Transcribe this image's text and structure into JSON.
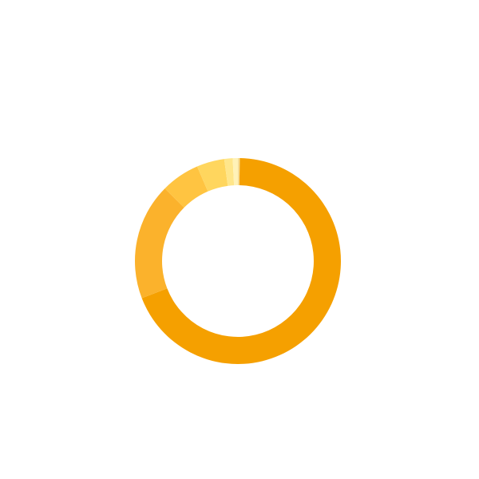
{
  "chart_data": {
    "type": "pie",
    "variant": "donut",
    "title": "",
    "legend": "none",
    "direction": "clockwise",
    "start_angle_deg": 0,
    "slices": [
      {
        "value": 0.3,
        "color": "#F5DD9A"
      },
      {
        "value": 68.0,
        "color": "#F5A000"
      },
      {
        "value": 18.1,
        "color": "#FBB22C"
      },
      {
        "value": 6.0,
        "color": "#FFC441"
      },
      {
        "value": 4.3,
        "color": "#FFD65E"
      },
      {
        "value": 1.3,
        "color": "#FFE68A"
      },
      {
        "value": 0.8,
        "color": "#FFF2B8"
      }
    ]
  }
}
